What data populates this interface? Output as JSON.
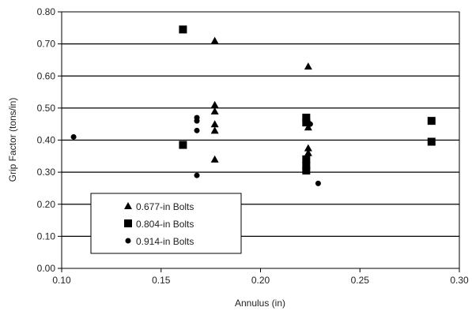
{
  "chart_data": {
    "type": "scatter",
    "title": "",
    "xlabel": "Annulus (in)",
    "ylabel": "Grip Factor (tons/in)",
    "xlim": [
      0.1,
      0.3
    ],
    "ylim": [
      0.0,
      0.8
    ],
    "x_ticks": [
      "0.10",
      "0.15",
      "0.20",
      "0.25",
      "0.30"
    ],
    "y_ticks": [
      "0.00",
      "0.10",
      "0.20",
      "0.30",
      "0.40",
      "0.50",
      "0.60",
      "0.70",
      "0.80"
    ],
    "grid": "horizontal",
    "legend_position": "bottom-left",
    "series": [
      {
        "name": "0.677-in Bolts",
        "marker": "triangle",
        "color": "#000000",
        "points": [
          [
            0.177,
            0.71
          ],
          [
            0.177,
            0.51
          ],
          [
            0.177,
            0.49
          ],
          [
            0.177,
            0.45
          ],
          [
            0.177,
            0.43
          ],
          [
            0.177,
            0.34
          ],
          [
            0.224,
            0.63
          ],
          [
            0.224,
            0.46
          ],
          [
            0.224,
            0.44
          ],
          [
            0.224,
            0.375
          ],
          [
            0.224,
            0.36
          ]
        ]
      },
      {
        "name": "0.804-in Bolts",
        "marker": "square",
        "color": "#000000",
        "points": [
          [
            0.161,
            0.745
          ],
          [
            0.161,
            0.385
          ],
          [
            0.223,
            0.47
          ],
          [
            0.223,
            0.455
          ],
          [
            0.223,
            0.34
          ],
          [
            0.223,
            0.32
          ],
          [
            0.223,
            0.305
          ],
          [
            0.286,
            0.46
          ],
          [
            0.286,
            0.395
          ]
        ]
      },
      {
        "name": "0.914-in Bolts",
        "marker": "circle",
        "color": "#000000",
        "points": [
          [
            0.106,
            0.41
          ],
          [
            0.168,
            0.47
          ],
          [
            0.168,
            0.46
          ],
          [
            0.168,
            0.43
          ],
          [
            0.168,
            0.29
          ],
          [
            0.225,
            0.45
          ],
          [
            0.229,
            0.265
          ]
        ]
      }
    ]
  }
}
